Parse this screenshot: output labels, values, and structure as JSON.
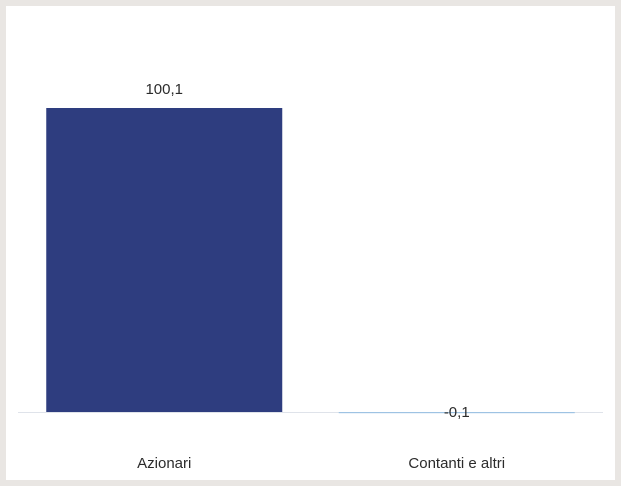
{
  "chart_data": {
    "type": "bar",
    "categories": [
      "Azionari",
      "Contanti e altri"
    ],
    "values": [
      100.1,
      -0.1
    ],
    "value_labels": [
      "100,1",
      "-0,1"
    ],
    "title": "",
    "xlabel": "",
    "ylabel": "",
    "ylim": [
      -0.1,
      100.1
    ],
    "grid": false,
    "legend": "none",
    "colors": {
      "positive": "#2e3d7f",
      "negative": "#9ec3e3",
      "baseline": "#dfe3ea"
    }
  }
}
